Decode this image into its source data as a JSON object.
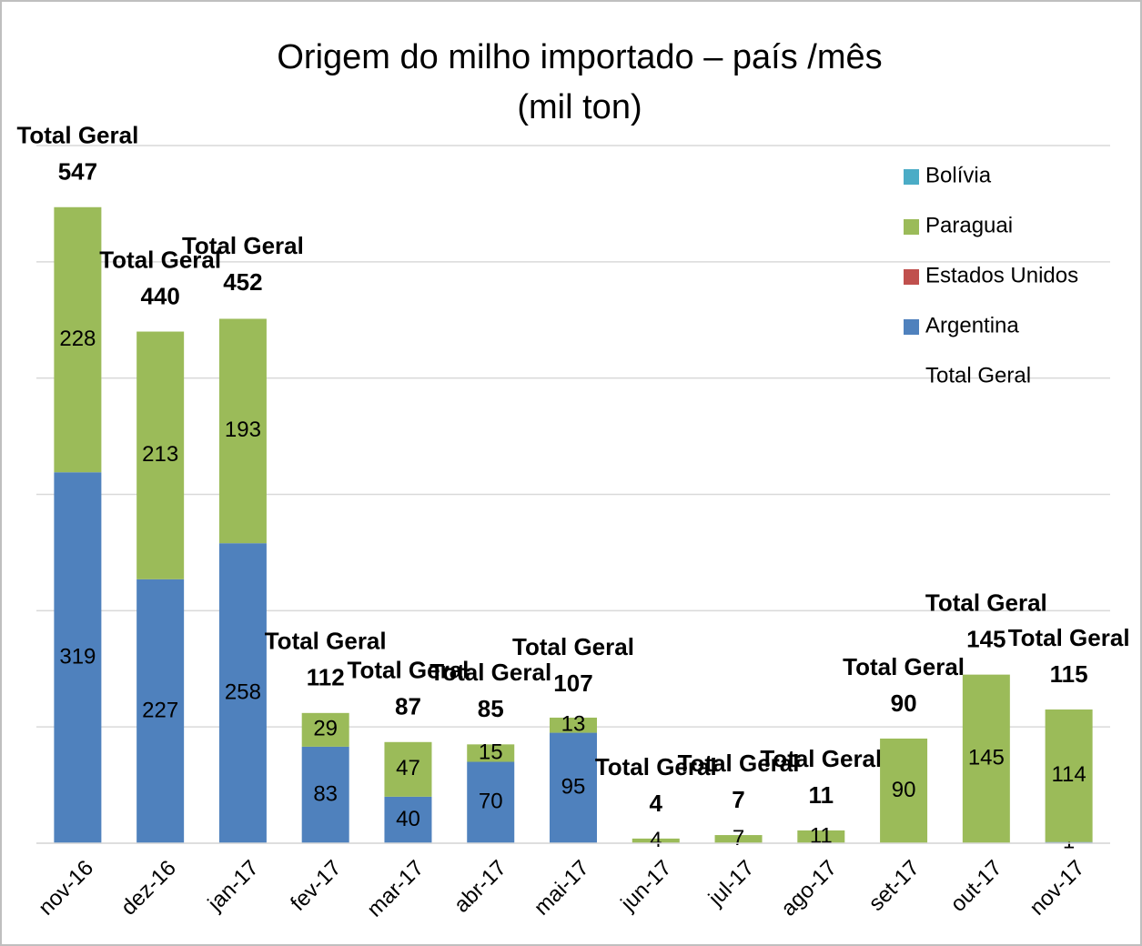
{
  "chart_data": {
    "type": "bar",
    "stacked": true,
    "title": "Origem do milho importado – país /mês",
    "subtitle": "(mil ton)",
    "categories": [
      "nov-16",
      "dez-16",
      "jan-17",
      "fev-17",
      "mar-17",
      "abr-17",
      "mai-17",
      "jun-17",
      "jul-17",
      "ago-17",
      "set-17",
      "out-17",
      "nov-17"
    ],
    "series": [
      {
        "name": "Argentina",
        "color": "#4f81bd",
        "label_color": "#ffffff",
        "values": [
          319,
          227,
          258,
          83,
          40,
          70,
          95,
          null,
          null,
          null,
          null,
          null,
          1
        ]
      },
      {
        "name": "Estados Unidos",
        "color": "#c0504d",
        "label_color": "#000000",
        "values": [
          null,
          null,
          null,
          null,
          null,
          null,
          null,
          null,
          null,
          null,
          null,
          null,
          null
        ]
      },
      {
        "name": "Paraguai",
        "color": "#9bbb59",
        "label_color": "#000000",
        "values": [
          228,
          213,
          193,
          29,
          47,
          15,
          13,
          4,
          7,
          11,
          90,
          145,
          114
        ]
      },
      {
        "name": "Bolívia",
        "color": "#4bacc6",
        "label_color": "#000000",
        "values": [
          null,
          null,
          null,
          null,
          null,
          null,
          null,
          null,
          null,
          null,
          null,
          null,
          null
        ]
      }
    ],
    "totals": {
      "name": "Total Geral",
      "values": [
        547,
        440,
        452,
        112,
        87,
        85,
        107,
        4,
        7,
        11,
        90,
        145,
        115
      ]
    },
    "ylim": [
      0,
      600
    ],
    "yticks": [
      0,
      100,
      200,
      300,
      400,
      500,
      600
    ],
    "grid": true,
    "legend": "right"
  }
}
